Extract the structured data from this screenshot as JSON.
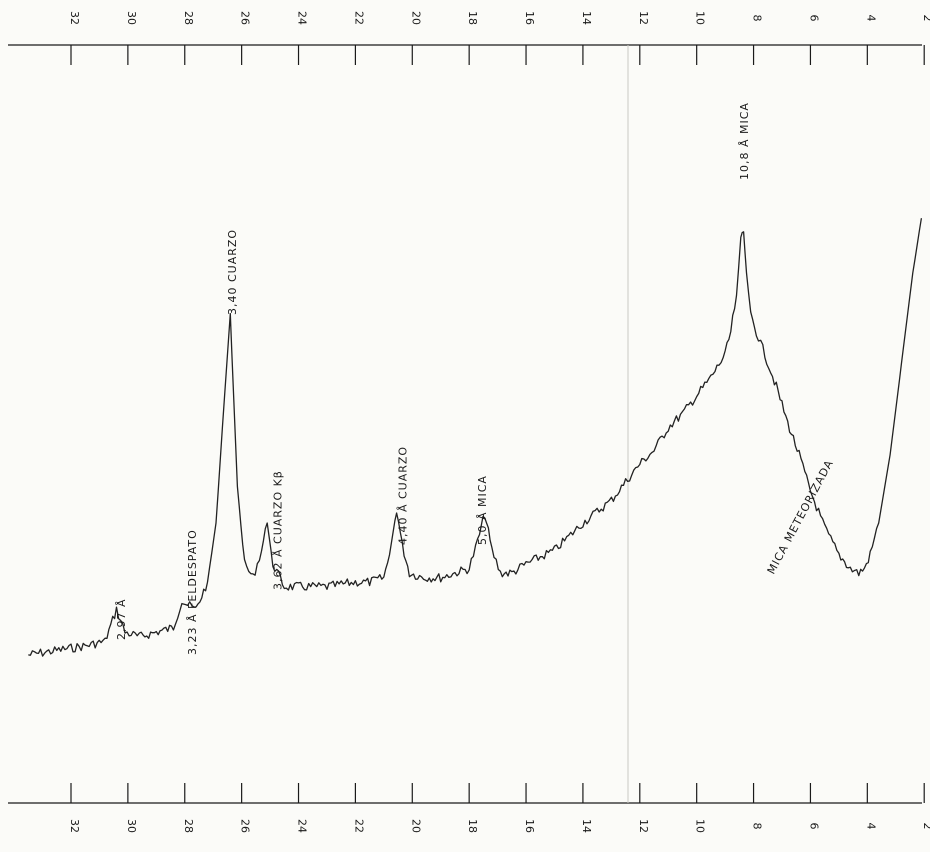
{
  "chart_data": {
    "type": "line",
    "title": "",
    "xlabel": "",
    "ylabel": "",
    "x_axis_reversed": true,
    "xlim": [
      33.5,
      2
    ],
    "ylim": [
      0,
      100
    ],
    "tick_labels": [
      "32",
      "30",
      "28",
      "26",
      "24",
      "22",
      "20",
      "18",
      "16",
      "14",
      "12",
      "10",
      "8",
      "6",
      "4",
      "2"
    ],
    "tick_values": [
      32,
      30,
      28,
      26,
      24,
      22,
      20,
      18,
      16,
      14,
      12,
      10,
      8,
      6,
      4,
      2
    ],
    "series": [
      {
        "x": [
          33.5,
          32.5,
          31.5,
          30.8,
          30.4,
          30.1,
          29.6,
          29.0,
          28.4,
          28.1,
          27.9,
          27.6,
          27.2,
          26.9,
          26.6,
          26.4,
          26.15,
          25.9,
          25.6,
          25.3,
          25.1,
          24.9,
          24.5,
          24.0,
          23.0,
          22.0,
          21.5,
          21.0,
          20.8,
          20.55,
          20.35,
          20.1,
          19.6,
          19.0,
          18.5,
          18.0,
          17.7,
          17.45,
          17.2,
          16.9,
          16.5,
          16.0,
          15.0,
          14.0,
          13.0,
          12.5,
          12.0,
          11.5,
          11.0,
          10.5,
          10.0,
          9.5,
          9.0,
          8.8,
          8.6,
          8.45,
          8.35,
          8.25,
          8.1,
          7.9,
          7.6,
          7.2,
          6.8,
          6.4,
          6.0,
          5.5,
          5.0,
          4.6,
          4.3,
          4.1,
          3.9,
          3.6,
          3.2,
          2.8,
          2.4,
          2.1
        ],
        "y": [
          11,
          12,
          13,
          14,
          21,
          16,
          15,
          16,
          17,
          23,
          22,
          21,
          27,
          40,
          68,
          86,
          48,
          31,
          28,
          34,
          40,
          31,
          26,
          26,
          26,
          27,
          27,
          28,
          33,
          43,
          35,
          29,
          28,
          28,
          29,
          30,
          36,
          42,
          34,
          29,
          29,
          31,
          34,
          40,
          45,
          49,
          53,
          56,
          61,
          64,
          68,
          72,
          77,
          82,
          90,
          102,
          104,
          95,
          86,
          82,
          77,
          70,
          62,
          55,
          47,
          39,
          33,
          30,
          29,
          30,
          33,
          40,
          55,
          75,
          95,
          107
        ]
      }
    ],
    "annotations": [
      {
        "x": 30.1,
        "label": "2,97 Å"
      },
      {
        "x": 27.6,
        "label": "3,23 Å  FELDESPATO"
      },
      {
        "x": 26.2,
        "label": "3,40 CUARZO"
      },
      {
        "x": 24.6,
        "label": "3,62 Å  CUARZO Kβ"
      },
      {
        "x": 20.2,
        "label": "4,40 Å  CUARZO"
      },
      {
        "x": 17.4,
        "label": "5,0 Å MICA"
      },
      {
        "x": 8.2,
        "label": "10,8 Å  MICA"
      },
      {
        "x": 7.3,
        "label": "MICA   METEORIZADA"
      }
    ],
    "grid": false
  }
}
